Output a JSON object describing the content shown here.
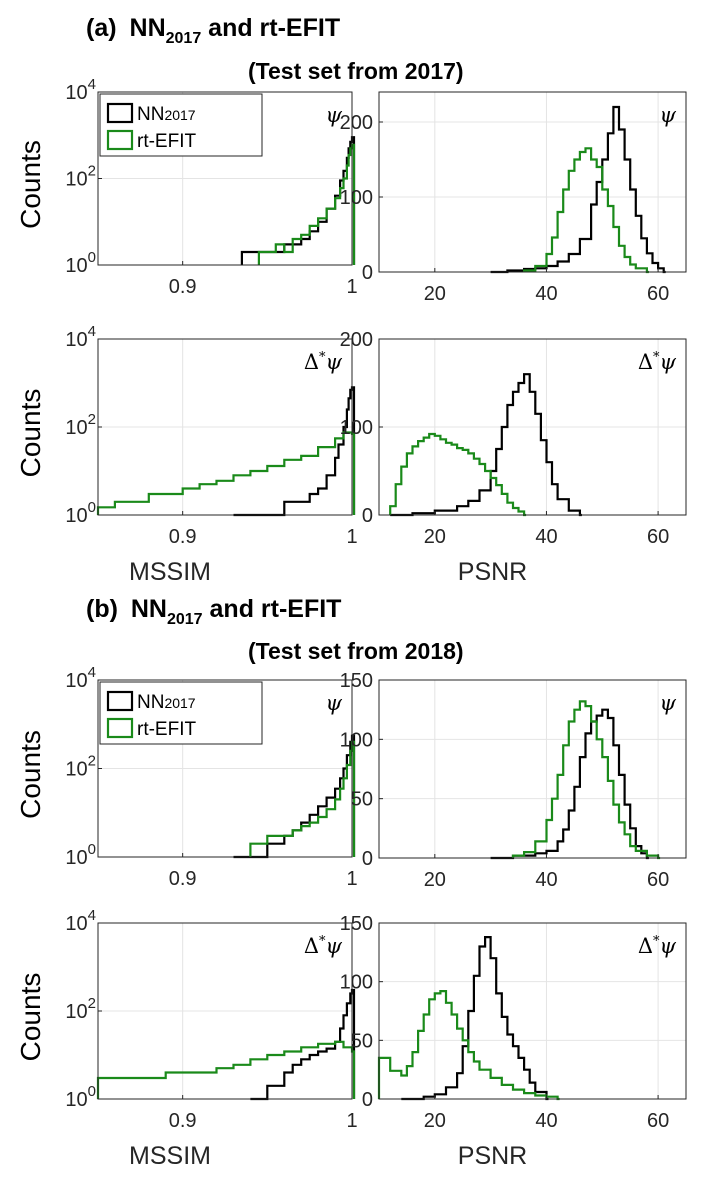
{
  "figure": {
    "sections": [
      {
        "label": "(b)",
        "title_main": "NN",
        "title_sub": "2017",
        "title_rest": " and rt-EFIT",
        "subtitle": "(Test set from 2018)"
      },
      {
        "label": "(a)",
        "title_main": "NN",
        "title_sub": "2017",
        "title_rest": " and rt-EFIT",
        "subtitle": "(Test set from 2017)"
      }
    ],
    "ylabel": "Counts",
    "xlabel_left": "MSSIM",
    "xlabel_right": "PSNR",
    "legend": [
      {
        "name": "NN",
        "sub": "2017",
        "color": "#000000"
      },
      {
        "name": "rt-EFIT",
        "sub": "",
        "color": "#1a8a1a"
      }
    ],
    "corner_labels": {
      "psi": "ψ",
      "lap": "Δ*ψ"
    }
  },
  "chart_data": [
    {
      "id": "a-mssim-psi",
      "type": "histogram",
      "xscale": "linear",
      "yscale": "log",
      "xlim": [
        0.85,
        1.0
      ],
      "ylim": [
        1,
        10000
      ],
      "xticks": [
        0.9,
        1.0
      ],
      "xticklabels": [
        "0.9",
        "1"
      ],
      "yticks": [
        1,
        100,
        10000
      ],
      "yticklabels": [
        "10^0",
        "10^2",
        "10^4"
      ],
      "corner": "ψ",
      "legend": true,
      "xlabel": "",
      "series": [
        {
          "name": "NN2017",
          "color": "#000000",
          "x": [
            0.935,
            0.95,
            0.96,
            0.965,
            0.97,
            0.975,
            0.98,
            0.985,
            0.99,
            0.993,
            0.995,
            0.997,
            0.998,
            0.999,
            1.0
          ],
          "y": [
            2,
            2,
            3,
            3,
            4,
            6,
            10,
            20,
            40,
            90,
            150,
            300,
            500,
            700,
            900
          ]
        },
        {
          "name": "rt-EFIT",
          "color": "#1a8a1a",
          "x": [
            0.945,
            0.955,
            0.96,
            0.965,
            0.97,
            0.975,
            0.98,
            0.985,
            0.99,
            0.993,
            0.995,
            0.997,
            0.998,
            0.999,
            1.0
          ],
          "y": [
            2,
            3,
            2,
            4,
            5,
            8,
            12,
            20,
            35,
            60,
            100,
            200,
            350,
            500,
            600
          ]
        }
      ]
    },
    {
      "id": "a-psnr-psi",
      "type": "histogram",
      "xscale": "linear",
      "yscale": "linear",
      "xlim": [
        10,
        65
      ],
      "ylim": [
        0,
        240
      ],
      "xticks": [
        20,
        40,
        60
      ],
      "xticklabels": [
        "20",
        "40",
        "60"
      ],
      "yticks": [
        0,
        100,
        200
      ],
      "yticklabels": [
        "0",
        "100",
        "200"
      ],
      "corner": "ψ",
      "legend": false,
      "xlabel": "",
      "series": [
        {
          "name": "NN2017",
          "color": "#000000",
          "x": [
            30,
            33,
            36,
            38,
            40,
            42,
            44,
            46,
            48,
            49,
            50,
            51,
            52,
            53,
            54,
            55,
            56,
            57,
            58,
            59,
            60,
            61
          ],
          "y": [
            0,
            2,
            4,
            5,
            8,
            14,
            24,
            44,
            90,
            120,
            150,
            185,
            220,
            190,
            150,
            110,
            75,
            45,
            25,
            12,
            5,
            0
          ]
        },
        {
          "name": "rt-EFIT",
          "color": "#1a8a1a",
          "x": [
            36,
            38,
            40,
            41,
            42,
            43,
            44,
            45,
            46,
            47,
            48,
            49,
            50,
            51,
            52,
            53,
            54,
            55,
            56,
            58
          ],
          "y": [
            2,
            8,
            24,
            46,
            80,
            110,
            135,
            150,
            160,
            165,
            150,
            140,
            110,
            88,
            60,
            35,
            20,
            10,
            5,
            0
          ]
        }
      ]
    },
    {
      "id": "a-mssim-lap",
      "type": "histogram",
      "xscale": "linear",
      "yscale": "log",
      "xlim": [
        0.85,
        1.0
      ],
      "ylim": [
        1,
        10000
      ],
      "xticks": [
        0.9,
        1.0
      ],
      "xticklabels": [
        "0.9",
        "1"
      ],
      "yticks": [
        1,
        100,
        10000
      ],
      "yticklabels": [
        "10^0",
        "10^2",
        "10^4"
      ],
      "corner": "Δ*ψ",
      "legend": false,
      "xlabel": "MSSIM",
      "series": [
        {
          "name": "NN2017",
          "color": "#000000",
          "x": [
            0.93,
            0.95,
            0.96,
            0.97,
            0.975,
            0.98,
            0.985,
            0.99,
            0.992,
            0.995,
            0.997,
            0.998,
            0.999,
            1.0
          ],
          "y": [
            1,
            1,
            2,
            2,
            3,
            4,
            8,
            20,
            40,
            100,
            250,
            450,
            700,
            800
          ]
        },
        {
          "name": "rt-EFIT",
          "color": "#1a8a1a",
          "x": [
            0.85,
            0.86,
            0.87,
            0.88,
            0.89,
            0.9,
            0.91,
            0.92,
            0.93,
            0.94,
            0.95,
            0.96,
            0.97,
            0.98,
            0.99,
            0.995,
            1.0
          ],
          "y": [
            1.5,
            2,
            2,
            3,
            3,
            4,
            5,
            6,
            8,
            10,
            13,
            18,
            22,
            35,
            55,
            75,
            70
          ]
        }
      ]
    },
    {
      "id": "a-psnr-lap",
      "type": "histogram",
      "xscale": "linear",
      "yscale": "linear",
      "xlim": [
        10,
        65
      ],
      "ylim": [
        0,
        200
      ],
      "xticks": [
        20,
        40,
        60
      ],
      "xticklabels": [
        "20",
        "40",
        "60"
      ],
      "yticks": [
        0,
        100,
        200
      ],
      "yticklabels": [
        "0",
        "100",
        "200"
      ],
      "corner": "Δ*ψ",
      "legend": false,
      "xlabel": "PSNR",
      "series": [
        {
          "name": "NN2017",
          "color": "#000000",
          "x": [
            12,
            16,
            20,
            24,
            26,
            28,
            30,
            31,
            32,
            33,
            34,
            35,
            36,
            37,
            38,
            39,
            40,
            41,
            42,
            44,
            46
          ],
          "y": [
            0,
            2,
            5,
            10,
            16,
            28,
            50,
            75,
            100,
            125,
            140,
            150,
            160,
            140,
            115,
            85,
            60,
            35,
            18,
            5,
            0
          ]
        },
        {
          "name": "rt-EFIT",
          "color": "#1a8a1a",
          "x": [
            12,
            13,
            14,
            15,
            16,
            17,
            18,
            19,
            20,
            21,
            22,
            23,
            24,
            25,
            26,
            27,
            28,
            29,
            30,
            31,
            32,
            33,
            34,
            35,
            36
          ],
          "y": [
            10,
            35,
            55,
            70,
            78,
            84,
            88,
            92,
            90,
            86,
            82,
            80,
            76,
            74,
            70,
            64,
            58,
            50,
            42,
            34,
            24,
            14,
            8,
            4,
            0
          ]
        }
      ]
    },
    {
      "id": "b-mssim-psi",
      "type": "histogram",
      "xscale": "linear",
      "yscale": "log",
      "xlim": [
        0.85,
        1.0
      ],
      "ylim": [
        1,
        10000
      ],
      "xticks": [
        0.9,
        1.0
      ],
      "xticklabels": [
        "0.9",
        "1"
      ],
      "yticks": [
        1,
        100,
        10000
      ],
      "yticklabels": [
        "10^0",
        "10^2",
        "10^4"
      ],
      "corner": "ψ",
      "legend": true,
      "xlabel": "",
      "series": [
        {
          "name": "NN2017",
          "color": "#000000",
          "x": [
            0.93,
            0.95,
            0.96,
            0.965,
            0.97,
            0.975,
            0.98,
            0.985,
            0.99,
            0.993,
            0.995,
            0.997,
            0.999,
            1.0
          ],
          "y": [
            1,
            2,
            3,
            4,
            6,
            9,
            14,
            22,
            35,
            60,
            100,
            200,
            400,
            550
          ]
        },
        {
          "name": "rt-EFIT",
          "color": "#1a8a1a",
          "x": [
            0.94,
            0.95,
            0.96,
            0.965,
            0.97,
            0.975,
            0.98,
            0.985,
            0.99,
            0.993,
            0.995,
            0.997,
            0.999,
            1.0
          ],
          "y": [
            2,
            3,
            3,
            4,
            5,
            6,
            8,
            12,
            20,
            35,
            60,
            120,
            250,
            400
          ]
        }
      ]
    },
    {
      "id": "b-psnr-psi",
      "type": "histogram",
      "xscale": "linear",
      "yscale": "linear",
      "xlim": [
        10,
        65
      ],
      "ylim": [
        0,
        150
      ],
      "xticks": [
        20,
        40,
        60
      ],
      "xticklabels": [
        "20",
        "40",
        "60"
      ],
      "yticks": [
        0,
        50,
        100,
        150
      ],
      "yticklabels": [
        "0",
        "50",
        "100",
        "150"
      ],
      "corner": "ψ",
      "legend": false,
      "xlabel": "",
      "series": [
        {
          "name": "NN2017",
          "color": "#000000",
          "x": [
            30,
            34,
            38,
            40,
            42,
            43,
            44,
            45,
            46,
            47,
            48,
            49,
            50,
            51,
            52,
            53,
            54,
            55,
            56,
            57,
            58
          ],
          "y": [
            0,
            2,
            4,
            6,
            14,
            24,
            40,
            60,
            85,
            105,
            115,
            120,
            125,
            118,
            95,
            70,
            45,
            25,
            10,
            4,
            0
          ]
        },
        {
          "name": "rt-EFIT",
          "color": "#1a8a1a",
          "x": [
            34,
            36,
            38,
            40,
            41,
            42,
            43,
            44,
            45,
            46,
            47,
            48,
            49,
            50,
            51,
            52,
            53,
            54,
            55,
            56,
            58,
            60
          ],
          "y": [
            2,
            5,
            14,
            32,
            50,
            70,
            95,
            115,
            125,
            132,
            128,
            115,
            100,
            85,
            65,
            45,
            30,
            20,
            10,
            6,
            2,
            0
          ]
        }
      ]
    },
    {
      "id": "b-mssim-lap",
      "type": "histogram",
      "xscale": "linear",
      "yscale": "log",
      "xlim": [
        0.85,
        1.0
      ],
      "ylim": [
        1,
        10000
      ],
      "xticks": [
        0.9,
        1.0
      ],
      "xticklabels": [
        "0.9",
        "1"
      ],
      "yticks": [
        1,
        100,
        10000
      ],
      "yticklabels": [
        "10^0",
        "10^2",
        "10^4"
      ],
      "corner": "Δ*ψ",
      "legend": false,
      "xlabel": "MSSIM",
      "series": [
        {
          "name": "NN2017",
          "color": "#000000",
          "x": [
            0.94,
            0.95,
            0.96,
            0.965,
            0.97,
            0.975,
            0.98,
            0.985,
            0.99,
            0.993,
            0.995,
            0.997,
            0.999,
            1.0
          ],
          "y": [
            1,
            2,
            4,
            6,
            8,
            10,
            12,
            14,
            20,
            40,
            80,
            150,
            250,
            300
          ]
        },
        {
          "name": "rt-EFIT",
          "color": "#1a8a1a",
          "x": [
            0.85,
            0.86,
            0.87,
            0.88,
            0.89,
            0.9,
            0.91,
            0.92,
            0.93,
            0.94,
            0.95,
            0.96,
            0.97,
            0.98,
            0.99,
            0.995,
            1.0
          ],
          "y": [
            3,
            3,
            3,
            3,
            4,
            4,
            4,
            5,
            6,
            8,
            10,
            12,
            15,
            18,
            20,
            15,
            12
          ]
        }
      ]
    },
    {
      "id": "b-psnr-lap",
      "type": "histogram",
      "xscale": "linear",
      "yscale": "linear",
      "xlim": [
        10,
        65
      ],
      "ylim": [
        0,
        150
      ],
      "xticks": [
        20,
        40,
        60
      ],
      "xticklabels": [
        "20",
        "40",
        "60"
      ],
      "yticks": [
        0,
        50,
        100,
        150
      ],
      "yticklabels": [
        "0",
        "50",
        "100",
        "150"
      ],
      "corner": "Δ*ψ",
      "legend": false,
      "xlabel": "PSNR",
      "series": [
        {
          "name": "NN2017",
          "color": "#000000",
          "x": [
            14,
            18,
            20,
            22,
            24,
            25,
            26,
            27,
            28,
            29,
            30,
            31,
            32,
            33,
            34,
            35,
            36,
            37,
            38,
            40
          ],
          "y": [
            0,
            2,
            4,
            10,
            22,
            45,
            75,
            105,
            130,
            138,
            120,
            90,
            70,
            55,
            45,
            35,
            25,
            14,
            6,
            0
          ]
        },
        {
          "name": "rt-EFIT",
          "color": "#1a8a1a",
          "x": [
            10,
            12,
            14,
            15,
            16,
            17,
            18,
            19,
            20,
            21,
            22,
            23,
            24,
            25,
            26,
            27,
            28,
            30,
            32,
            34,
            36,
            38,
            40,
            42
          ],
          "y": [
            35,
            24,
            20,
            28,
            40,
            58,
            72,
            85,
            90,
            92,
            82,
            72,
            60,
            50,
            40,
            32,
            25,
            18,
            12,
            8,
            5,
            3,
            2,
            0
          ]
        }
      ]
    }
  ]
}
